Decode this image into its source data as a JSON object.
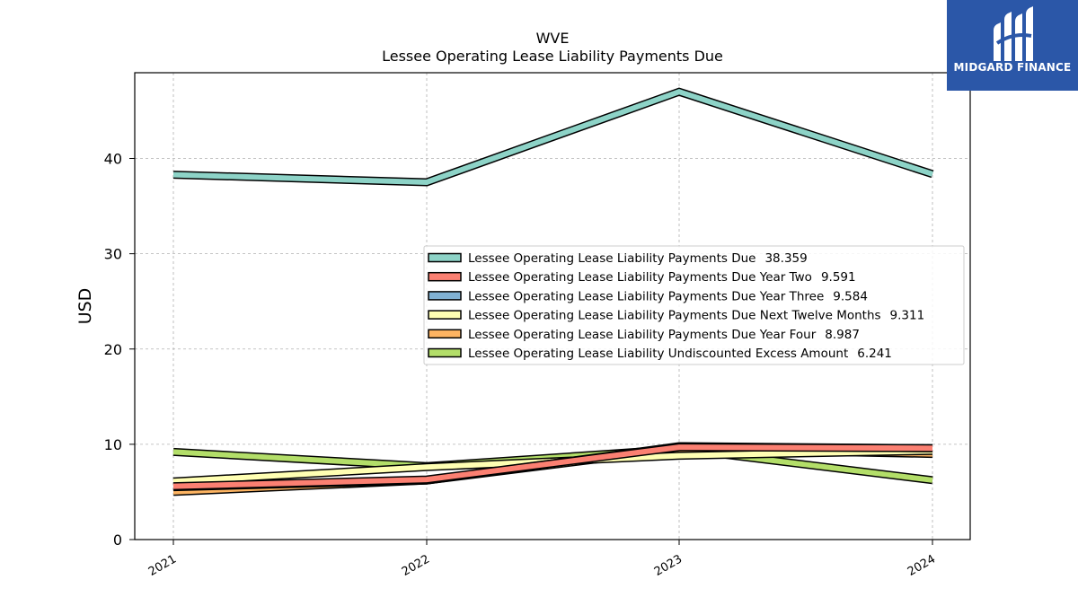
{
  "chart_data": {
    "type": "line",
    "title": "WVE",
    "subtitle": "Lessee Operating Lease Liability Payments Due",
    "ylabel": "USD",
    "xlabel": "",
    "x": [
      "2021",
      "2022",
      "2023",
      "2024"
    ],
    "ylim": [
      0,
      49
    ],
    "yticks": [
      0,
      10,
      20,
      30,
      40
    ],
    "grid": true,
    "legend_position": "center-right",
    "series": [
      {
        "name": "Lessee Operating Lease Liability Payments Due",
        "legend_value": "38.359",
        "color": "#8dd3c7",
        "values": [
          38.3,
          37.5,
          47.0,
          38.359
        ]
      },
      {
        "name": "Lessee Operating Lease Liability Payments Due Year Two",
        "legend_value": "9.591",
        "color": "#fb8072",
        "values": [
          5.6,
          6.3,
          9.7,
          9.591
        ]
      },
      {
        "name": "Lessee Operating Lease Liability Payments Due Year Three",
        "legend_value": "9.584",
        "color": "#80b1d3",
        "values": [
          5.5,
          6.2,
          9.8,
          9.584
        ]
      },
      {
        "name": "Lessee Operating Lease Liability Payments Due Next Twelve Months",
        "legend_value": "9.311",
        "color": "#ffffb3",
        "values": [
          6.1,
          7.6,
          8.8,
          9.311
        ]
      },
      {
        "name": "Lessee Operating Lease Liability Payments Due Year Four",
        "legend_value": "8.987",
        "color": "#fdb462",
        "values": [
          5.0,
          6.2,
          9.5,
          8.987
        ]
      },
      {
        "name": "Lessee Operating Lease Liability Undiscounted Excess Amount",
        "legend_value": "6.241",
        "color": "#b3de69",
        "values": [
          9.2,
          7.7,
          9.5,
          6.241
        ]
      }
    ]
  },
  "logo": {
    "text": "MIDGARD FINANCE"
  }
}
